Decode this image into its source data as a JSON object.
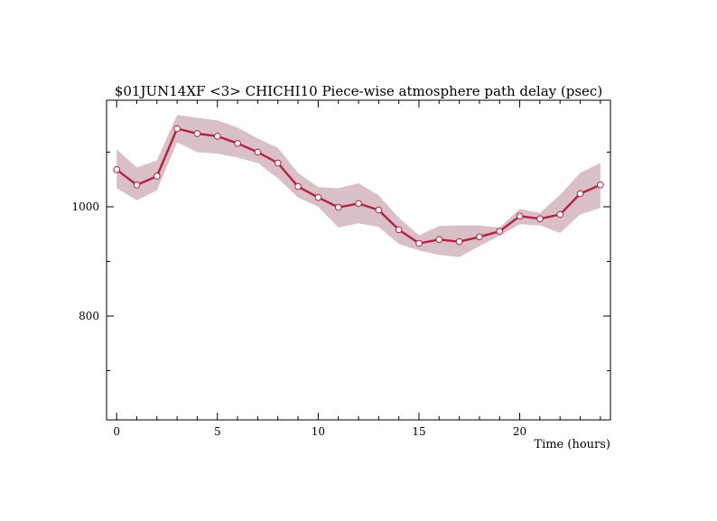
{
  "chart_data": {
    "type": "line",
    "title": "$01JUN14XF <3>  CHICHI10  Piece-wise atmosphere path delay (psec)",
    "xlabel": "Time (hours)",
    "ylabel": "",
    "xlim": [
      -0.5,
      24.5
    ],
    "ylim": [
      610,
      1195
    ],
    "x_major_ticks": [
      0,
      5,
      10,
      15,
      20
    ],
    "x_tick_labels": [
      "0",
      "5",
      "10",
      "15",
      "20"
    ],
    "y_labeled_ticks": [
      800,
      1000
    ],
    "y_tick_labels": [
      "800",
      "1000"
    ],
    "y_minor_ticks": [
      700,
      900,
      1100
    ],
    "grid": false,
    "legend": "none",
    "colors": {
      "line": "#b5213f",
      "band": "#d9c0c6",
      "marker_fill": "#ffffff"
    },
    "series": [
      {
        "x": [
          0,
          1,
          2,
          3,
          4,
          5,
          6,
          7,
          8,
          9,
          10,
          11,
          12,
          13,
          14,
          15,
          16,
          17,
          18,
          19,
          20,
          21,
          22,
          23,
          24
        ],
        "values": [
          1068,
          1040,
          1056,
          1143,
          1134,
          1129,
          1116,
          1100,
          1080,
          1037,
          1017,
          999,
          1006,
          994,
          958,
          933,
          940,
          936,
          945,
          955,
          983,
          978,
          986,
          1024,
          1040
        ],
        "upper": [
          1105,
          1072,
          1085,
          1168,
          1163,
          1158,
          1145,
          1125,
          1108,
          1062,
          1036,
          1034,
          1043,
          1021,
          980,
          948,
          965,
          966,
          966,
          962,
          996,
          989,
          1022,
          1062,
          1080
        ],
        "lower": [
          1034,
          1012,
          1030,
          1118,
          1100,
          1097,
          1090,
          1080,
          1052,
          1017,
          1000,
          962,
          970,
          963,
          932,
          920,
          912,
          908,
          928,
          947,
          968,
          966,
          952,
          986,
          998
        ]
      }
    ]
  }
}
